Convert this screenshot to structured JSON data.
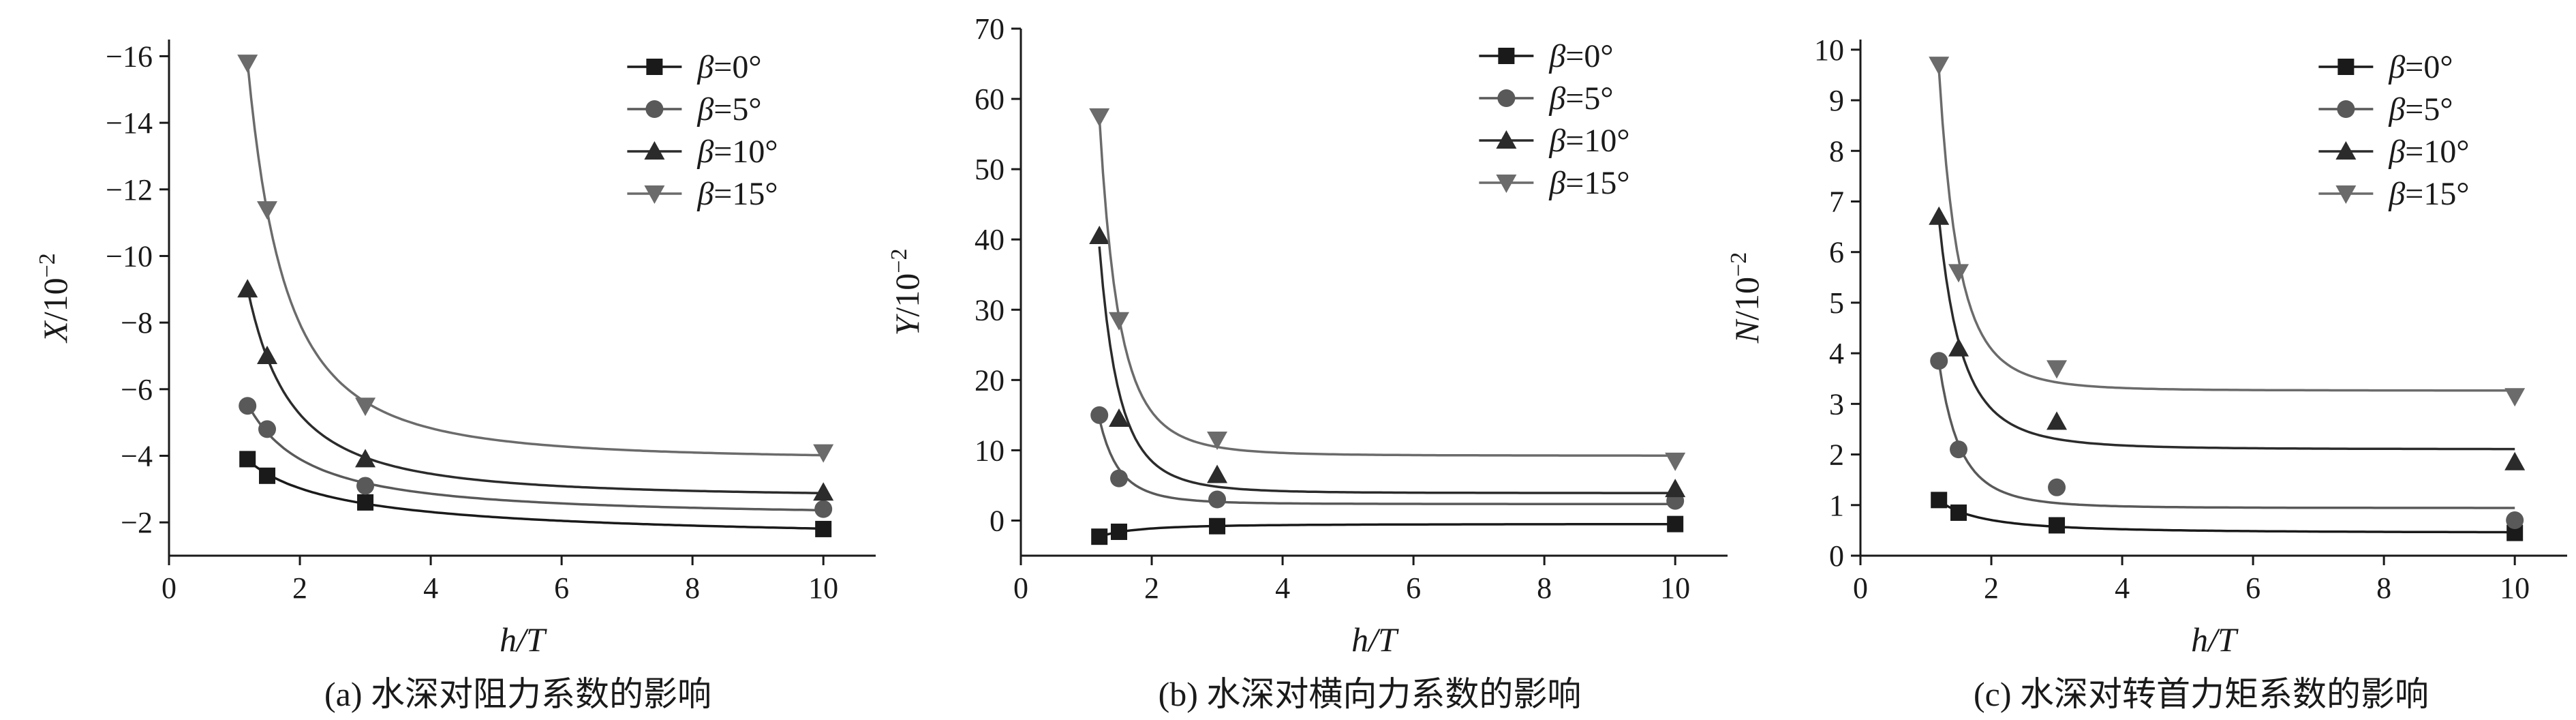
{
  "figure": {
    "beta_symbol": "β",
    "series_colors": [
      "#1a1a1a",
      "#595959",
      "#2b2b2b",
      "#6b6b6b"
    ],
    "markers": [
      "square",
      "circle",
      "triangle-up",
      "triangle-down"
    ]
  },
  "chart_data": [
    {
      "type": "scatter",
      "caption": "(a) 水深对阻力系数的影响",
      "xlabel_italic": "h",
      "xlabel_rest": "/T",
      "ylabel_italic": "X",
      "ylabel_rest": "/10",
      "ylabel_exp": "−2",
      "xlim": [
        0,
        10.8
      ],
      "ylim": [
        -1,
        -16.5
      ],
      "xticks": [
        "0",
        "2",
        "4",
        "6",
        "8",
        "10"
      ],
      "xtick_values": [
        0,
        2,
        4,
        6,
        8,
        10
      ],
      "yticks": [
        "−2",
        "−4",
        "−6",
        "−8",
        "−10",
        "−12",
        "−14",
        "−16"
      ],
      "ytick_values": [
        -2,
        -4,
        -6,
        -8,
        -10,
        -12,
        -14,
        -16
      ],
      "legend_position": "top-right",
      "fitted_curves": true,
      "series": [
        {
          "name": "=0°",
          "x": [
            1.2,
            1.5,
            3,
            10
          ],
          "y": [
            -3.9,
            -3.4,
            -2.6,
            -1.8
          ]
        },
        {
          "name": "=5°",
          "x": [
            1.2,
            1.5,
            3,
            10
          ],
          "y": [
            -5.5,
            -4.8,
            -3.1,
            -2.4
          ]
        },
        {
          "name": "=10°",
          "x": [
            1.2,
            1.5,
            3,
            10
          ],
          "y": [
            -9.0,
            -7.0,
            -3.9,
            -2.9
          ]
        },
        {
          "name": "=15°",
          "x": [
            1.2,
            1.5,
            3,
            10
          ],
          "y": [
            -15.8,
            -11.4,
            -5.5,
            -4.1
          ]
        }
      ]
    },
    {
      "type": "scatter",
      "caption": "(b) 水深对横向力系数的影响",
      "xlabel_italic": "h",
      "xlabel_rest": "/T",
      "ylabel_italic": "Y",
      "ylabel_rest": "/10",
      "ylabel_exp": "−2",
      "xlim": [
        0,
        10.8
      ],
      "ylim": [
        -5,
        70
      ],
      "xticks": [
        "0",
        "2",
        "4",
        "6",
        "8",
        "10"
      ],
      "xtick_values": [
        0,
        2,
        4,
        6,
        8,
        10
      ],
      "yticks": [
        "0",
        "10",
        "20",
        "30",
        "40",
        "50",
        "60",
        "70"
      ],
      "ytick_values": [
        0,
        10,
        20,
        30,
        40,
        50,
        60,
        70
      ],
      "legend_position": "top-right",
      "fitted_curves": true,
      "series": [
        {
          "name": "=0°",
          "x": [
            1.2,
            1.5,
            3,
            10
          ],
          "y": [
            -2.3,
            -1.6,
            -0.8,
            -0.5
          ]
        },
        {
          "name": "=5°",
          "x": [
            1.2,
            1.5,
            3,
            10
          ],
          "y": [
            15,
            6,
            3,
            2.8
          ]
        },
        {
          "name": "=10°",
          "x": [
            1.2,
            1.5,
            3,
            10
          ],
          "y": [
            40.5,
            14.5,
            6.5,
            4.5
          ]
        },
        {
          "name": "=15°",
          "x": [
            1.2,
            1.5,
            3,
            10
          ],
          "y": [
            57.5,
            28.5,
            11.5,
            8.5
          ]
        }
      ]
    },
    {
      "type": "scatter",
      "caption": "(c) 水深对转首力矩系数的影响",
      "xlabel_italic": "h",
      "xlabel_rest": "/T",
      "ylabel_italic": "N",
      "ylabel_rest": "/10",
      "ylabel_exp": "−2",
      "xlim": [
        0,
        10.8
      ],
      "ylim": [
        0,
        10.2
      ],
      "xticks": [
        "0",
        "2",
        "4",
        "6",
        "8",
        "10"
      ],
      "xtick_values": [
        0,
        2,
        4,
        6,
        8,
        10
      ],
      "yticks": [
        "0",
        "1",
        "2",
        "3",
        "4",
        "5",
        "6",
        "7",
        "8",
        "9",
        "10"
      ],
      "ytick_values": [
        0,
        1,
        2,
        3,
        4,
        5,
        6,
        7,
        8,
        9,
        10
      ],
      "legend_position": "top-right",
      "fitted_curves": true,
      "series": [
        {
          "name": "=0°",
          "x": [
            1.2,
            1.5,
            3,
            10
          ],
          "y": [
            1.1,
            0.85,
            0.6,
            0.45
          ]
        },
        {
          "name": "=5°",
          "x": [
            1.2,
            1.5,
            3,
            10
          ],
          "y": [
            3.85,
            2.1,
            1.35,
            0.7
          ]
        },
        {
          "name": "=10°",
          "x": [
            1.2,
            1.5,
            3,
            10
          ],
          "y": [
            6.7,
            4.1,
            2.65,
            1.85
          ]
        },
        {
          "name": "=15°",
          "x": [
            1.2,
            1.5,
            3,
            10
          ],
          "y": [
            9.7,
            5.6,
            3.7,
            3.15
          ]
        }
      ]
    }
  ]
}
